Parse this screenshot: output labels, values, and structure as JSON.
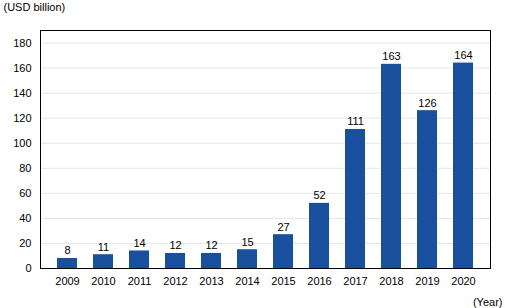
{
  "chart_data": {
    "type": "bar",
    "categories": [
      "2009",
      "2010",
      "2011",
      "2012",
      "2013",
      "2014",
      "2015",
      "2016",
      "2017",
      "2018",
      "2019",
      "2020"
    ],
    "values": [
      8,
      11,
      14,
      12,
      12,
      15,
      27,
      52,
      111,
      163,
      126,
      164
    ],
    "color": "#1a4f9d",
    "xlabel": "(Year)",
    "ylabel": "(USD billion)",
    "ylim": [
      0,
      190
    ],
    "yticks": [
      0,
      20,
      40,
      60,
      80,
      100,
      120,
      140,
      160,
      180
    ],
    "grid": true,
    "data_labels": true
  }
}
